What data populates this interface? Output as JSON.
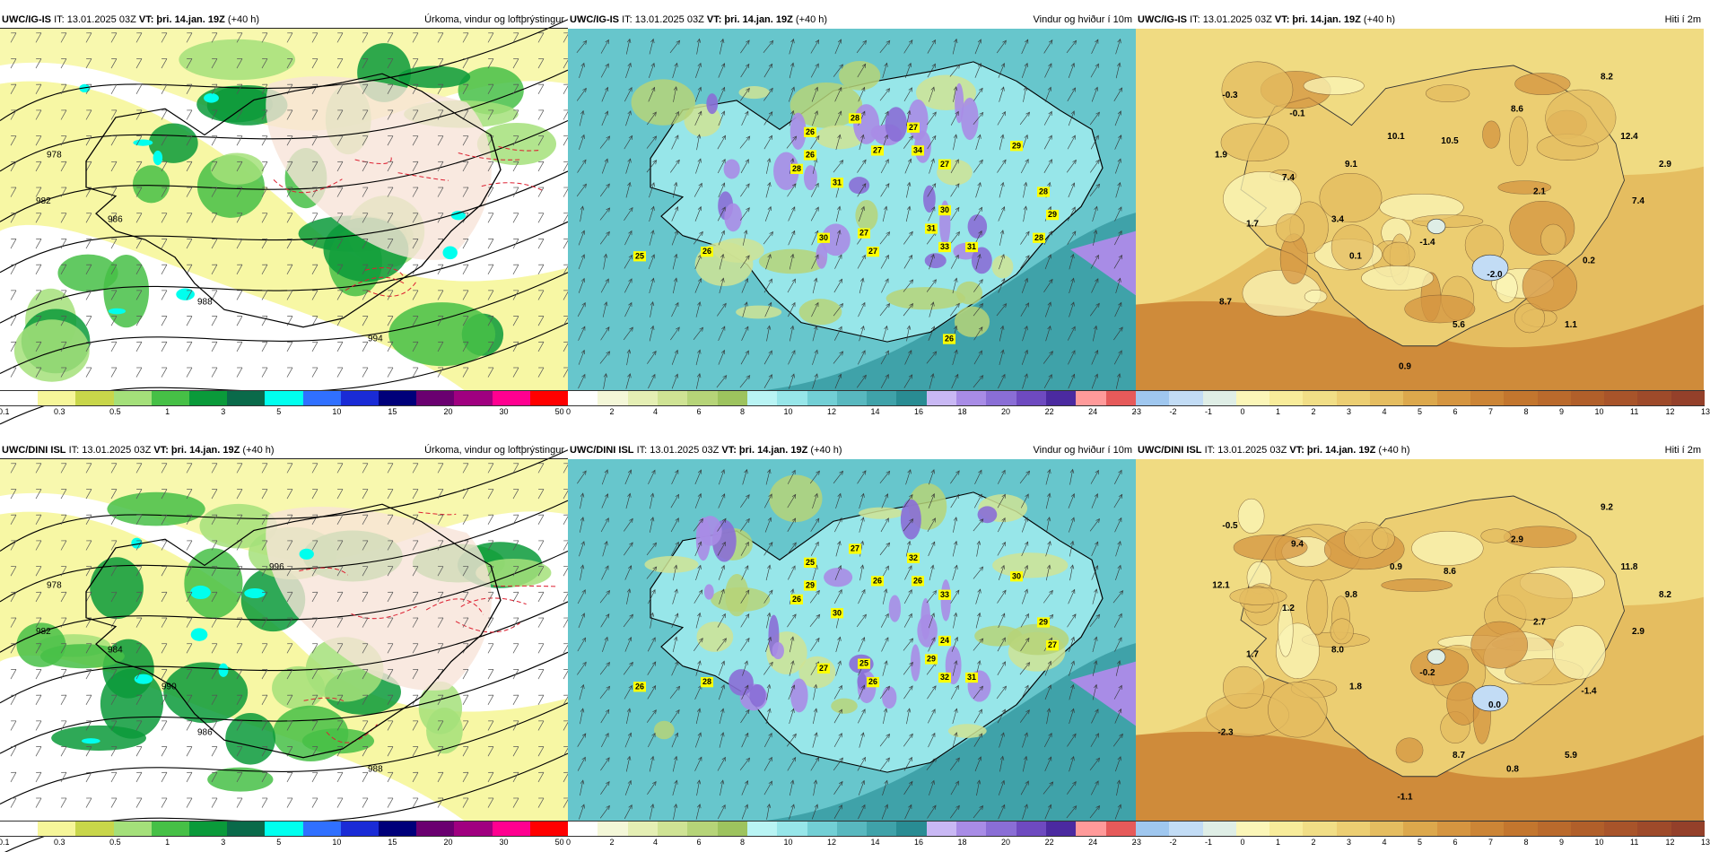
{
  "rows": [
    {
      "model": "UWC/IG-IS",
      "panels": [
        {
          "kind": "precip",
          "title_model": "UWC/IG-IS",
          "title_it": "IT: 13.01.2025 03Z",
          "title_vt_label": "VT:",
          "title_vt": "þri. 14.jan. 19Z",
          "title_lead": "(+40 h)",
          "title_right": "Úrkoma, vindur og loftþrýstingur",
          "ticks": [
            "0.1",
            "0.3",
            "0.5",
            "1",
            "3",
            "5",
            "10",
            "15",
            "20",
            "30",
            "50"
          ],
          "labels": [
            {
              "text": "978"
            },
            {
              "text": "982"
            },
            {
              "text": "986"
            },
            {
              "text": "988"
            },
            {
              "text": "994"
            }
          ]
        },
        {
          "kind": "wind",
          "title_model": "UWC/IG-IS",
          "title_it": "IT: 13.01.2025 03Z",
          "title_vt_label": "VT:",
          "title_vt": "þri. 14.jan. 19Z",
          "title_lead": "(+40 h)",
          "title_right": "Vindur og hviður í 10m",
          "ticks": [
            "0",
            "2",
            "4",
            "6",
            "8",
            "10",
            "12",
            "14",
            "16",
            "18",
            "20",
            "22",
            "24",
            "26"
          ],
          "gusts": [
            "28",
            "27",
            "26",
            "27",
            "34",
            "27",
            "26",
            "31",
            "28",
            "30",
            "29",
            "28",
            "25",
            "26",
            "30",
            "31",
            "27",
            "33",
            "31",
            "27",
            "29",
            "26",
            "28"
          ]
        },
        {
          "kind": "temp",
          "title_model": "UWC/IG-IS",
          "title_it": "IT: 13.01.2025 03Z",
          "title_vt_label": "VT:",
          "title_vt": "þri. 14.jan. 19Z",
          "title_lead": "(+40 h)",
          "title_right": "Hiti í 2m",
          "ticks": [
            "-3",
            "-2",
            "-1",
            "0",
            "1",
            "2",
            "3",
            "4",
            "5",
            "6",
            "7",
            "8",
            "9",
            "10",
            "11",
            "12",
            "13"
          ],
          "temps": [
            "-0.3",
            "-0.1",
            "8.2",
            "8.6",
            "10.1",
            "10.5",
            "12.4",
            "1.9",
            "9.1",
            "2.9",
            "7.4",
            "2.1",
            "7.4",
            "3.4",
            "1.7",
            "0.1",
            "-1.4",
            "0.2",
            "-2.0",
            "8.7",
            "5.6",
            "1.1",
            "0.9"
          ]
        }
      ]
    },
    {
      "model": "UWC/DINI ISL",
      "panels": [
        {
          "kind": "precip",
          "title_model": "UWC/DINI ISL",
          "title_it": "IT: 13.01.2025 03Z",
          "title_vt_label": "VT:",
          "title_vt": "þri. 14.jan. 19Z",
          "title_lead": "(+40 h)",
          "title_right": "Úrkoma, vindur og loftþrýstingur",
          "ticks": [
            "0.1",
            "0.3",
            "0.5",
            "1",
            "3",
            "5",
            "10",
            "15",
            "20",
            "30",
            "50"
          ],
          "labels": [
            {
              "text": "978"
            },
            {
              "text": "982"
            },
            {
              "text": "984"
            },
            {
              "text": "986"
            },
            {
              "text": "988"
            },
            {
              "text": "990"
            },
            {
              "text": "996"
            }
          ]
        },
        {
          "kind": "wind",
          "title_model": "UWC/DINI ISL",
          "title_it": "IT: 13.01.2025 03Z",
          "title_vt_label": "VT:",
          "title_vt": "þri. 14.jan. 19Z",
          "title_lead": "(+40 h)",
          "title_right": "Vindur og hviður í 10m",
          "ticks": [
            "0",
            "2",
            "4",
            "6",
            "8",
            "10",
            "12",
            "14",
            "16",
            "18",
            "20",
            "22",
            "24",
            "26"
          ],
          "gusts": [
            "27",
            "32",
            "25",
            "26",
            "26",
            "33",
            "29",
            "30",
            "26",
            "24",
            "30",
            "29",
            "26",
            "28",
            "27",
            "29",
            "25",
            "32",
            "31",
            "26",
            "27"
          ]
        },
        {
          "kind": "temp",
          "title_model": "UWC/DINI ISL",
          "title_it": "IT: 13.01.2025 03Z",
          "title_vt_label": "VT:",
          "title_vt": "þri. 14.jan. 19Z",
          "title_lead": "(+40 h)",
          "title_right": "Hiti í 2m",
          "ticks": [
            "-3",
            "-2",
            "-1",
            "0",
            "1",
            "2",
            "3",
            "4",
            "5",
            "6",
            "7",
            "8",
            "9",
            "10",
            "11",
            "12",
            "13"
          ],
          "temps": [
            "-0.5",
            "9.4",
            "9.2",
            "2.9",
            "0.9",
            "8.6",
            "11.8",
            "12.1",
            "9.8",
            "8.2",
            "1.2",
            "2.7",
            "2.9",
            "8.0",
            "1.7",
            "1.8",
            "-0.2",
            "-1.4",
            "0.0",
            "-2.3",
            "8.7",
            "5.9",
            "-1.1",
            "0.8"
          ]
        }
      ]
    }
  ],
  "colors": {
    "precip": [
      "#ffffff",
      "#f6f69a",
      "#c8d64a",
      "#a4e07a",
      "#46c046",
      "#0a9a3a",
      "#0a6a4a",
      "#00ffee",
      "#3070ff",
      "#1a2bd6",
      "#00007a",
      "#6a0070",
      "#a00080",
      "#ff0090",
      "#ff0000"
    ],
    "wind": [
      "#ffffff",
      "#f4f7d8",
      "#e5efb4",
      "#cfe394",
      "#b6d478",
      "#9dc35e",
      "#b9f4f4",
      "#97e6e9",
      "#72cfd5",
      "#58b8bf",
      "#3fa2a9",
      "#298c93",
      "#c9b8f4",
      "#a88ce6",
      "#8a6ed6",
      "#6e4ac0",
      "#4b2aa0",
      "#ff9a9a",
      "#e65a5a"
    ],
    "temp": [
      "#9fc7ef",
      "#c2dcf5",
      "#dfeee6",
      "#fbf6b8",
      "#f8ec9a",
      "#f1de86",
      "#ecce72",
      "#e5bd60",
      "#dca84c",
      "#d59540",
      "#cc8536",
      "#c3762e",
      "#ba6a2c",
      "#b15f2a",
      "#a8542a",
      "#9e4a2a",
      "#94402a"
    ]
  }
}
